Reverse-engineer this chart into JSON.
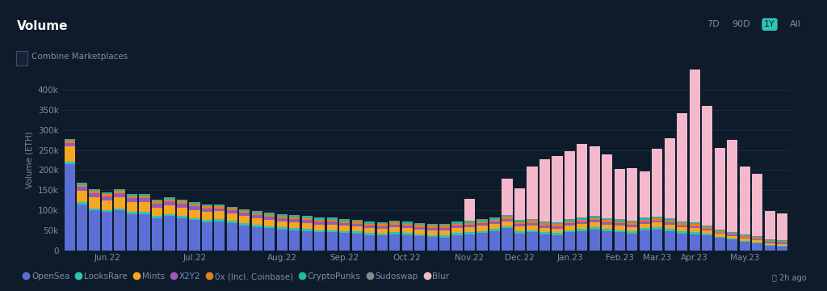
{
  "title": "Volume",
  "ylabel": "Volume (ETH)",
  "background_color": "#0d1b2a",
  "plot_bg_color": "#0d1b2a",
  "grid_color": "#1a2e45",
  "text_color": "#ffffff",
  "axis_label_color": "#7a8fa8",
  "ylim": [
    0,
    450000
  ],
  "yticks": [
    0,
    50000,
    100000,
    150000,
    200000,
    250000,
    300000,
    350000,
    400000
  ],
  "ytick_labels": [
    "0",
    "50k",
    "100k",
    "150k",
    "200k",
    "250k",
    "300k",
    "350k",
    "400k"
  ],
  "legend_items": [
    "OpenSea",
    "LooksRare",
    "Mints",
    "X2Y2",
    "0x (Incl. Coinbase)",
    "CryptoPunks",
    "Sudoswap",
    "Blur"
  ],
  "legend_colors": [
    "#5b6fd4",
    "#2ec4b6",
    "#f5a623",
    "#9b59b6",
    "#e67e22",
    "#1abc9c",
    "#7f8c8d",
    "#f4b8cc"
  ],
  "x_tick_positions": [
    3,
    10,
    17,
    22,
    27,
    32,
    36,
    40,
    44,
    47,
    50,
    54
  ],
  "x_tick_labels": [
    "Jun.22",
    "Jul.22",
    "Aug.22",
    "Sep.22",
    "Oct.22",
    "Nov.22",
    "Dec.22",
    "Jan.23",
    "Feb.23",
    "Mar.23",
    "Apr.23",
    "May.23"
  ],
  "opensea": [
    215000,
    115000,
    100000,
    95000,
    100000,
    90000,
    90000,
    80000,
    85000,
    80000,
    75000,
    70000,
    72000,
    68000,
    62000,
    58000,
    55000,
    52000,
    50000,
    48000,
    45000,
    45000,
    43000,
    42000,
    38000,
    37000,
    40000,
    38000,
    35000,
    33000,
    32000,
    38000,
    40000,
    43000,
    48000,
    55000,
    42000,
    45000,
    40000,
    38000,
    45000,
    48000,
    52000,
    48000,
    45000,
    42000,
    50000,
    52000,
    48000,
    42000,
    40000,
    38000,
    32000,
    28000,
    22000,
    18000,
    12000,
    10000
  ],
  "looksrare": [
    5000,
    5000,
    5000,
    5000,
    5000,
    5000,
    5000,
    5000,
    5000,
    5000,
    5000,
    5000,
    5000,
    5000,
    5000,
    5000,
    5000,
    5000,
    5000,
    5000,
    5000,
    5000,
    5000,
    5000,
    5000,
    5000,
    5000,
    5000,
    5000,
    5000,
    5000,
    5000,
    5000,
    5000,
    5000,
    5000,
    5000,
    5000,
    5000,
    5000,
    5000,
    5000,
    5000,
    5000,
    5000,
    5000,
    5000,
    5000,
    5000,
    5000,
    5000,
    3000,
    2000,
    2000,
    2000,
    2000,
    2000,
    2000
  ],
  "mints": [
    40000,
    28000,
    28000,
    25000,
    28000,
    25000,
    25000,
    22000,
    22000,
    22000,
    20000,
    20000,
    20000,
    18000,
    18000,
    16000,
    16000,
    15000,
    15000,
    15000,
    14000,
    14000,
    13000,
    13000,
    12000,
    12000,
    13000,
    12000,
    12000,
    12000,
    13000,
    12000,
    12000,
    13000,
    12000,
    12000,
    12000,
    12000,
    11000,
    11000,
    11000,
    12000,
    12000,
    11000,
    11000,
    11000,
    11000,
    12000,
    11000,
    10000,
    10000,
    8000,
    7000,
    6000,
    5000,
    5000,
    4000,
    4000
  ],
  "x2y2": [
    8000,
    10000,
    10000,
    10000,
    10000,
    10000,
    10000,
    10000,
    10000,
    10000,
    10000,
    10000,
    8000,
    8000,
    8000,
    8000,
    7000,
    7000,
    7000,
    7000,
    7000,
    7000,
    6000,
    6000,
    6000,
    6000,
    6000,
    6000,
    6000,
    6000,
    6000,
    6000,
    6000,
    6000,
    6000,
    6000,
    6000,
    6000,
    6000,
    6000,
    6000,
    6000,
    6000,
    6000,
    6000,
    6000,
    5000,
    5000,
    5000,
    5000,
    5000,
    4000,
    3000,
    3000,
    3000,
    3000,
    3000,
    3000
  ],
  "zerox": [
    5000,
    5000,
    5000,
    5000,
    5000,
    5000,
    5000,
    5000,
    5000,
    5000,
    5000,
    5000,
    5000,
    5000,
    5000,
    5000,
    5000,
    5000,
    5000,
    5000,
    5000,
    5000,
    5000,
    5000,
    5000,
    5000,
    5000,
    5000,
    5000,
    5000,
    5000,
    5000,
    5000,
    5000,
    5000,
    5000,
    5000,
    5000,
    5000,
    5000,
    5000,
    5000,
    5000,
    5000,
    5000,
    5000,
    5000,
    5000,
    5000,
    5000,
    5000,
    4000,
    3000,
    3000,
    3000,
    3000,
    3000,
    3000
  ],
  "cryptopunks": [
    3000,
    3000,
    3000,
    3000,
    3000,
    3000,
    3000,
    3000,
    3000,
    3000,
    3000,
    3000,
    3000,
    3000,
    3000,
    3000,
    3000,
    3000,
    3000,
    3000,
    3000,
    3000,
    3000,
    3000,
    3000,
    3000,
    3000,
    3000,
    3000,
    3000,
    3000,
    3000,
    3000,
    3000,
    3000,
    3000,
    3000,
    3000,
    3000,
    3000,
    3000,
    3000,
    3000,
    3000,
    3000,
    3000,
    3000,
    3000,
    3000,
    3000,
    3000,
    2000,
    2000,
    2000,
    2000,
    2000,
    2000,
    2000
  ],
  "sudoswap": [
    2000,
    2000,
    2000,
    2000,
    2000,
    2000,
    2000,
    2000,
    2000,
    2000,
    2000,
    2000,
    2000,
    2000,
    2000,
    2000,
    2000,
    2000,
    2000,
    2000,
    2000,
    2000,
    2000,
    2000,
    2000,
    2000,
    2000,
    2000,
    2000,
    2000,
    2000,
    2000,
    2000,
    2000,
    2000,
    2000,
    2000,
    2000,
    2000,
    2000,
    2000,
    2000,
    2000,
    2000,
    2000,
    2000,
    2000,
    2000,
    2000,
    2000,
    2000,
    2000,
    2000,
    2000,
    2000,
    2000,
    2000,
    2000
  ],
  "blur": [
    0,
    0,
    0,
    0,
    0,
    0,
    0,
    0,
    0,
    0,
    0,
    0,
    0,
    0,
    0,
    0,
    0,
    0,
    0,
    0,
    0,
    0,
    0,
    0,
    0,
    0,
    0,
    0,
    0,
    0,
    0,
    0,
    55000,
    0,
    0,
    90000,
    80000,
    130000,
    155000,
    165000,
    170000,
    185000,
    175000,
    160000,
    125000,
    130000,
    115000,
    170000,
    200000,
    270000,
    420000,
    300000,
    205000,
    230000,
    170000,
    155000,
    70000,
    65000
  ]
}
